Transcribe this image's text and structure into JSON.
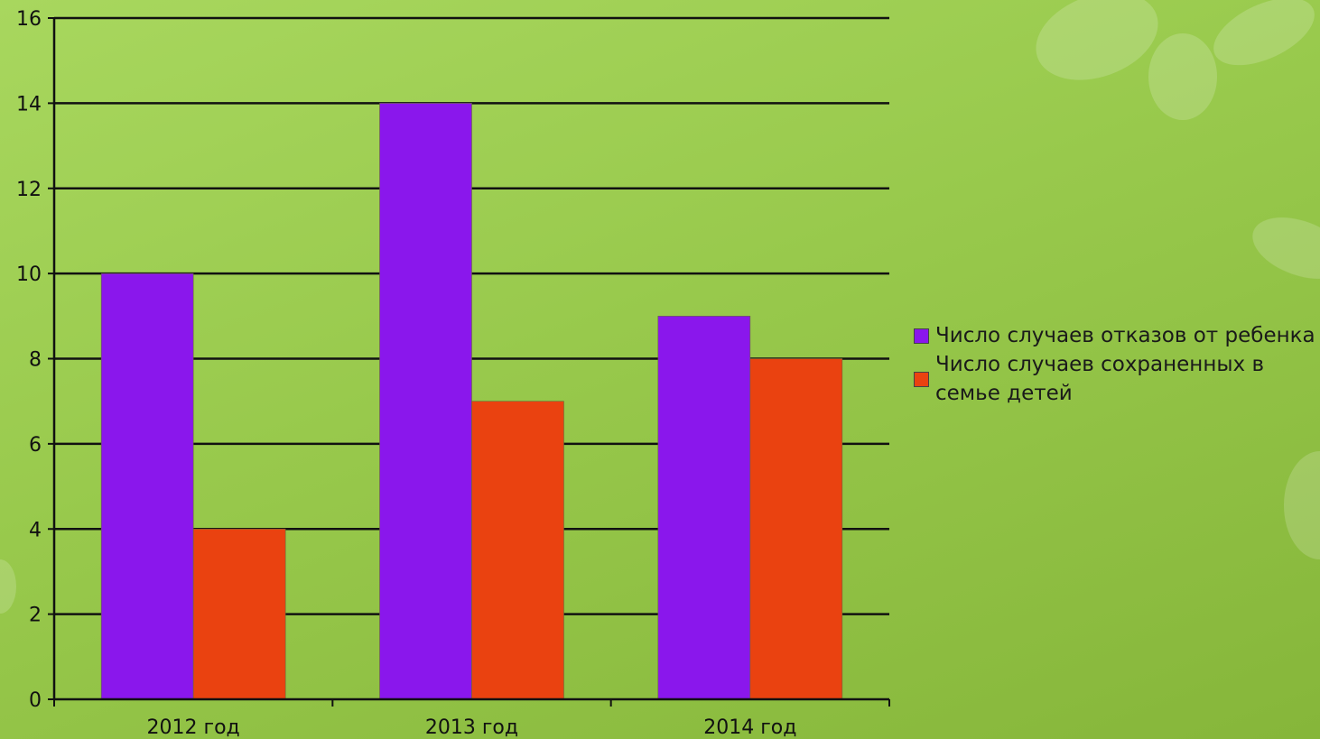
{
  "chart_data": {
    "type": "bar",
    "categories": [
      "2012 год",
      "2013 год",
      "2014 год"
    ],
    "series": [
      {
        "name": "Число случаев отказов от ребенка",
        "values": [
          10,
          14,
          9
        ],
        "color": "#8a17ec"
      },
      {
        "name": "Число случаев сохраненных в семье детей",
        "values": [
          4,
          7,
          8
        ],
        "color": "#ea4210"
      }
    ],
    "ylim": [
      0,
      16
    ],
    "yticks": [
      0,
      2,
      4,
      6,
      8,
      10,
      12,
      14,
      16
    ],
    "grid": true,
    "legend_position": "right",
    "xlabel": "",
    "ylabel": "",
    "title": ""
  },
  "colors": {
    "background": "#9fd055",
    "axis": "#111111",
    "gridline": "#111111"
  }
}
